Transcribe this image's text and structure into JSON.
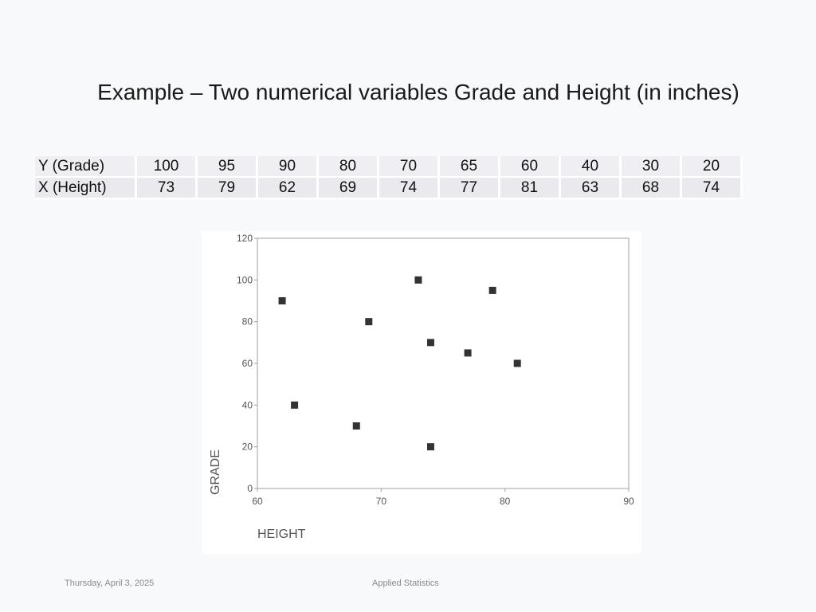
{
  "slide": {
    "title": "Example – Two numerical variables Grade and Height (in inches)",
    "footer_date": "Thursday, April 3, 2025",
    "footer_center": "Applied Statistics"
  },
  "table": {
    "rows": [
      {
        "label": "Y (Grade)",
        "values": [
          "100",
          "95",
          "90",
          "80",
          "70",
          "65",
          "60",
          "40",
          "30",
          "20"
        ]
      },
      {
        "label": "X (Height)",
        "values": [
          "73",
          "79",
          "62",
          "69",
          "74",
          "77",
          "81",
          "63",
          "68",
          "74"
        ]
      }
    ]
  },
  "chart_data": {
    "type": "scatter",
    "xlabel": "HEIGHT",
    "ylabel": "GRADE",
    "xlim": [
      60,
      90
    ],
    "ylim": [
      0,
      120
    ],
    "x_ticks": [
      60,
      70,
      80,
      90
    ],
    "y_ticks": [
      0,
      20,
      40,
      60,
      80,
      100,
      120
    ],
    "grid": false,
    "points": [
      {
        "x": 73,
        "y": 100
      },
      {
        "x": 79,
        "y": 95
      },
      {
        "x": 62,
        "y": 90
      },
      {
        "x": 69,
        "y": 80
      },
      {
        "x": 74,
        "y": 70
      },
      {
        "x": 77,
        "y": 65
      },
      {
        "x": 81,
        "y": 60
      },
      {
        "x": 63,
        "y": 40
      },
      {
        "x": 68,
        "y": 30
      },
      {
        "x": 74,
        "y": 20
      }
    ],
    "marker_color": "#333333"
  }
}
